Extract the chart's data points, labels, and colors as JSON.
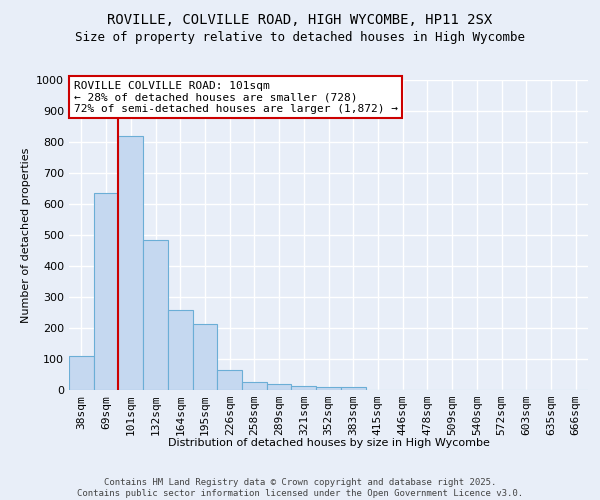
{
  "title1": "ROVILLE, COLVILLE ROAD, HIGH WYCOMBE, HP11 2SX",
  "title2": "Size of property relative to detached houses in High Wycombe",
  "xlabel": "Distribution of detached houses by size in High Wycombe",
  "ylabel": "Number of detached properties",
  "categories": [
    "38sqm",
    "69sqm",
    "101sqm",
    "132sqm",
    "164sqm",
    "195sqm",
    "226sqm",
    "258sqm",
    "289sqm",
    "321sqm",
    "352sqm",
    "383sqm",
    "415sqm",
    "446sqm",
    "478sqm",
    "509sqm",
    "540sqm",
    "572sqm",
    "603sqm",
    "635sqm",
    "666sqm"
  ],
  "values": [
    110,
    635,
    820,
    485,
    257,
    213,
    65,
    27,
    18,
    13,
    11,
    11,
    0,
    0,
    0,
    0,
    0,
    0,
    0,
    0,
    0
  ],
  "bar_color": "#c5d8f0",
  "bar_edge_color": "#6baed6",
  "highlight_line_color": "#cc0000",
  "highlight_index": 2,
  "ann_line1": "ROVILLE COLVILLE ROAD: 101sqm",
  "ann_line2": "← 28% of detached houses are smaller (728)",
  "ann_line3": "72% of semi-detached houses are larger (1,872) →",
  "ann_box_fc": "#ffffff",
  "ann_box_ec": "#cc0000",
  "ylim_max": 1000,
  "yticks": [
    0,
    100,
    200,
    300,
    400,
    500,
    600,
    700,
    800,
    900,
    1000
  ],
  "footer1": "Contains HM Land Registry data © Crown copyright and database right 2025.",
  "footer2": "Contains public sector information licensed under the Open Government Licence v3.0.",
  "bg_color": "#e8eef8",
  "grid_color": "#ffffff",
  "title_fs": 10,
  "subtitle_fs": 9,
  "ylabel_fs": 8,
  "xlabel_fs": 8,
  "tick_fs": 8,
  "ann_fs": 8,
  "footer_fs": 6.5
}
